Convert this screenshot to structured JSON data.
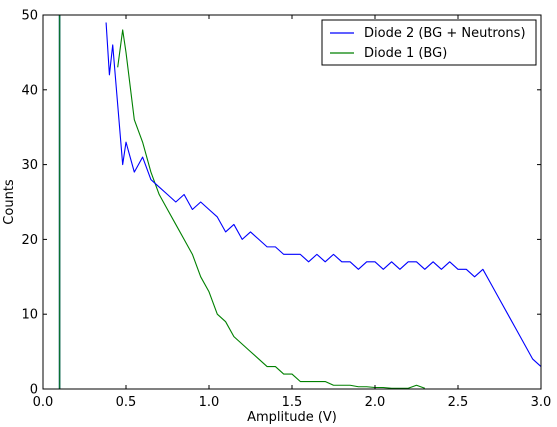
{
  "chart_data": {
    "type": "line",
    "title": "",
    "xlabel": "Amplitude (V)",
    "ylabel": "Counts",
    "xlim": [
      0.0,
      3.0
    ],
    "ylim": [
      0,
      50
    ],
    "x_ticks": [
      0.0,
      0.5,
      1.0,
      1.5,
      2.0,
      2.5,
      3.0
    ],
    "x_tick_labels": [
      "0.0",
      "0.5",
      "1.0",
      "1.5",
      "2.0",
      "2.5",
      "3.0"
    ],
    "y_ticks": [
      0,
      10,
      20,
      30,
      40,
      50
    ],
    "y_tick_labels": [
      "0",
      "10",
      "20",
      "30",
      "40",
      "50"
    ],
    "grid": false,
    "legend_position": "top-right",
    "series": [
      {
        "name": "Diode 2 (BG + Neutrons)",
        "color": "#0000ff",
        "x": [
          0.1,
          0.38,
          0.4,
          0.42,
          0.45,
          0.48,
          0.5,
          0.55,
          0.6,
          0.65,
          0.7,
          0.75,
          0.8,
          0.85,
          0.9,
          0.95,
          1.0,
          1.05,
          1.1,
          1.15,
          1.2,
          1.25,
          1.3,
          1.35,
          1.4,
          1.45,
          1.5,
          1.55,
          1.6,
          1.65,
          1.7,
          1.75,
          1.8,
          1.85,
          1.9,
          1.95,
          2.0,
          2.05,
          2.1,
          2.15,
          2.2,
          2.25,
          2.3,
          2.35,
          2.4,
          2.45,
          2.5,
          2.55,
          2.6,
          2.65,
          2.7,
          2.75,
          2.8,
          2.85,
          2.9,
          2.95,
          3.0
        ],
        "y": [
          50,
          49,
          42,
          46,
          38,
          30,
          33,
          29,
          31,
          28,
          27,
          26,
          25,
          26,
          24,
          25,
          24,
          23,
          21,
          22,
          20,
          21,
          20,
          19,
          19,
          18,
          18,
          18,
          17,
          18,
          17,
          18,
          17,
          17,
          16,
          17,
          17,
          16,
          17,
          16,
          17,
          17,
          16,
          17,
          16,
          17,
          16,
          16,
          15,
          16,
          14,
          12,
          10,
          8,
          6,
          4,
          3
        ]
      },
      {
        "name": "Diode 1 (BG)",
        "color": "#008000",
        "x": [
          0.1,
          0.45,
          0.48,
          0.5,
          0.55,
          0.6,
          0.65,
          0.7,
          0.75,
          0.8,
          0.85,
          0.9,
          0.95,
          1.0,
          1.05,
          1.1,
          1.15,
          1.2,
          1.25,
          1.3,
          1.35,
          1.4,
          1.45,
          1.5,
          1.55,
          1.6,
          1.65,
          1.7,
          1.75,
          1.8,
          1.85,
          1.9,
          1.95,
          2.0,
          2.05,
          2.1,
          2.15,
          2.2,
          2.25,
          2.3
        ],
        "y": [
          50,
          43,
          48,
          45,
          36,
          33,
          29,
          26,
          24,
          22,
          20,
          18,
          15,
          13,
          10,
          9,
          7,
          6,
          5,
          4,
          3,
          3,
          2,
          2,
          1,
          1,
          1,
          1,
          0.5,
          0.5,
          0.5,
          0.3,
          0.3,
          0.2,
          0.2,
          0.1,
          0.1,
          0.1,
          0.5,
          0.1
        ]
      }
    ]
  }
}
